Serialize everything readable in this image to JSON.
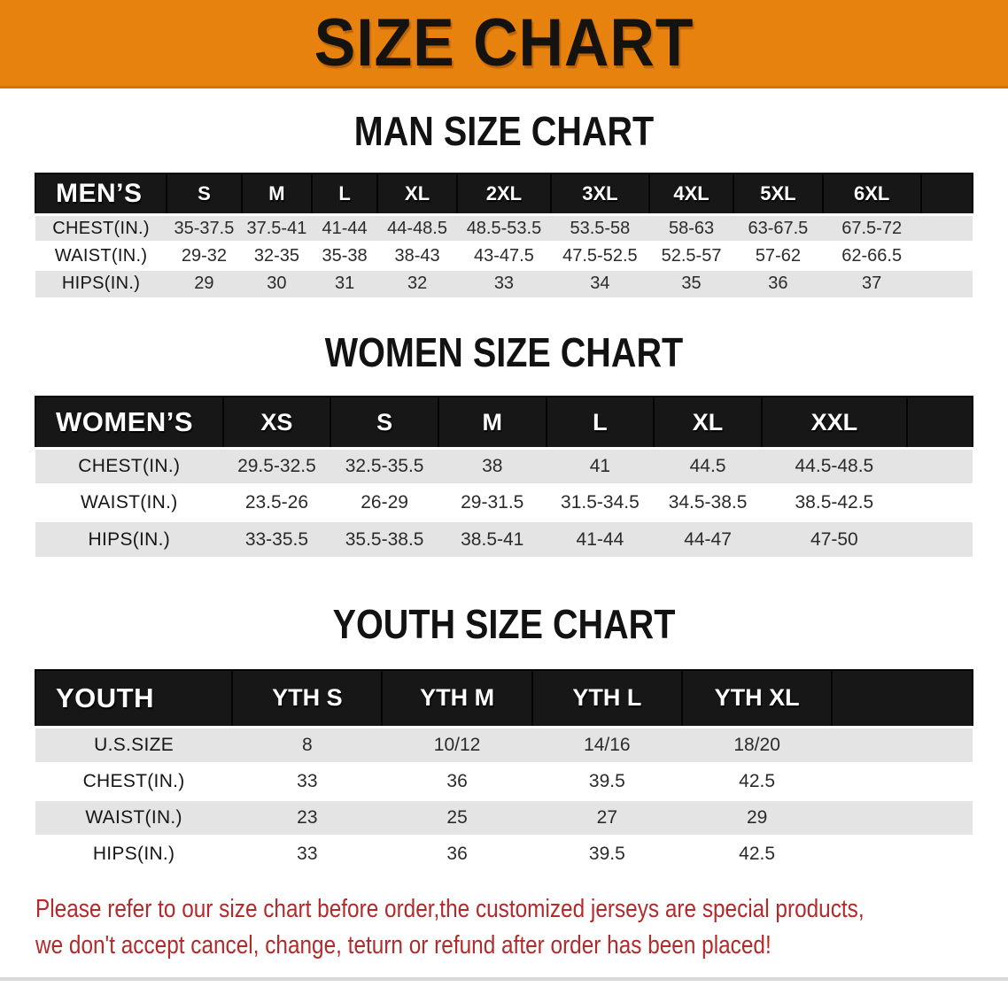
{
  "banner": {
    "title": "SIZE CHART",
    "bg_color": "#e8820f"
  },
  "sections": [
    {
      "heading": "MAN SIZE CHART",
      "table": {
        "header_label": "MEN’S",
        "sizes": [
          "S",
          "M",
          "L",
          "XL",
          "2XL",
          "3XL",
          "4XL",
          "5XL",
          "6XL"
        ],
        "rows": [
          {
            "label": "CHEST(IN.)",
            "values": [
              "35-37.5",
              "37.5-41",
              "41-44",
              "44-48.5",
              "48.5-53.5",
              "53.5-58",
              "58-63",
              "63-67.5",
              "67.5-72"
            ]
          },
          {
            "label": "WAIST(IN.)",
            "values": [
              "29-32",
              "32-35",
              "35-38",
              "38-43",
              "43-47.5",
              "47.5-52.5",
              "52.5-57",
              "57-62",
              "62-66.5"
            ]
          },
          {
            "label": "HIPS(IN.)",
            "values": [
              "29",
              "30",
              "31",
              "32",
              "33",
              "34",
              "35",
              "36",
              "37"
            ]
          }
        ]
      }
    },
    {
      "heading": "WOMEN SIZE CHART",
      "table": {
        "header_label": "WOMEN’S",
        "sizes": [
          "XS",
          "S",
          "M",
          "L",
          "XL",
          "XXL"
        ],
        "rows": [
          {
            "label": "CHEST(IN.)",
            "values": [
              "29.5-32.5",
              "32.5-35.5",
              "38",
              "41",
              "44.5",
              "44.5-48.5"
            ]
          },
          {
            "label": "WAIST(IN.)",
            "values": [
              "23.5-26",
              "26-29",
              "29-31.5",
              "31.5-34.5",
              "34.5-38.5",
              "38.5-42.5"
            ]
          },
          {
            "label": "HIPS(IN.)",
            "values": [
              "33-35.5",
              "35.5-38.5",
              "38.5-41",
              "41-44",
              "44-47",
              "47-50"
            ]
          }
        ]
      }
    },
    {
      "heading": "YOUTH SIZE CHART",
      "table": {
        "header_label": "YOUTH",
        "sizes": [
          "YTH S",
          "YTH M",
          "YTH L",
          "YTH XL"
        ],
        "rows": [
          {
            "label": "U.S.SIZE",
            "values": [
              "8",
              "10/12",
              "14/16",
              "18/20"
            ]
          },
          {
            "label": "CHEST(IN.)",
            "values": [
              "33",
              "36",
              "39.5",
              "42.5"
            ]
          },
          {
            "label": "WAIST(IN.)",
            "values": [
              "23",
              "25",
              "27",
              "29"
            ]
          },
          {
            "label": "HIPS(IN.)",
            "values": [
              "33",
              "36",
              "39.5",
              "42.5"
            ]
          }
        ]
      }
    }
  ],
  "disclaimer": {
    "line1": "Please refer to our size chart before order,the customized jerseys are special products,",
    "line2": "we don't accept cancel, change, teturn or refund after order has been placed!",
    "color": "#b22a2a"
  }
}
